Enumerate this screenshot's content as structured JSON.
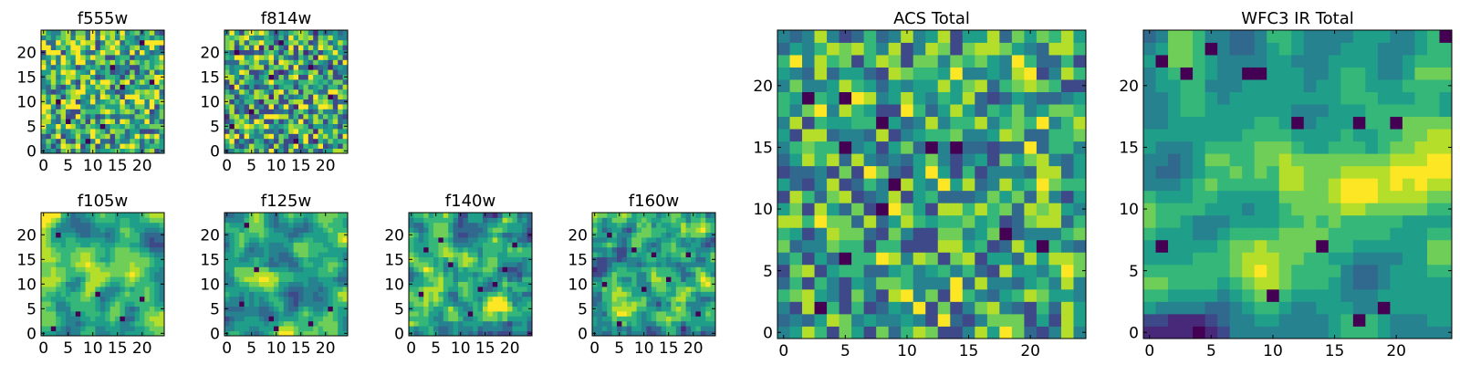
{
  "figure": {
    "colormap": [
      "#440154",
      "#482878",
      "#3e4989",
      "#31688e",
      "#26828e",
      "#1f9e89",
      "#35b779",
      "#6ece58",
      "#b5de2b",
      "#fde725"
    ]
  },
  "chart_data": [
    {
      "type": "heatmap",
      "title": "f555w",
      "grid_size": 25,
      "xlim": [
        -0.5,
        24.5
      ],
      "ylim": [
        -0.5,
        24.5
      ],
      "xticks": [
        0,
        5,
        10,
        15,
        20
      ],
      "yticks": [
        0,
        5,
        10,
        15,
        20
      ],
      "xtick_labels": [
        "0",
        "5",
        "10",
        "15",
        "20"
      ],
      "ytick_labels": [
        "0",
        "5",
        "10",
        "15",
        "20"
      ],
      "seed": 11,
      "smooth": 0,
      "base": 0.62,
      "noise": 0.38,
      "dark_spots": [
        [
          16,
          13
        ],
        [
          12,
          5
        ],
        [
          5,
          6
        ],
        [
          9,
          2
        ],
        [
          20,
          22
        ],
        [
          14,
          17
        ],
        [
          22,
          14
        ],
        [
          3,
          10
        ]
      ]
    },
    {
      "type": "heatmap",
      "title": "f814w",
      "grid_size": 25,
      "xlim": [
        -0.5,
        24.5
      ],
      "ylim": [
        -0.5,
        24.5
      ],
      "xticks": [
        0,
        5,
        10,
        15,
        20
      ],
      "yticks": [
        0,
        5,
        10,
        15,
        20
      ],
      "xtick_labels": [
        "0",
        "5",
        "10",
        "15",
        "20"
      ],
      "ytick_labels": [
        "0",
        "5",
        "10",
        "15",
        "20"
      ],
      "seed": 23,
      "smooth": 0,
      "base": 0.58,
      "noise": 0.4,
      "dark_spots": [
        [
          2,
          20
        ],
        [
          9,
          15
        ],
        [
          14,
          2
        ],
        [
          17,
          17
        ],
        [
          5,
          8
        ],
        [
          21,
          11
        ],
        [
          11,
          22
        ],
        [
          1,
          5
        ]
      ]
    },
    {
      "type": "heatmap",
      "title": "f105w",
      "grid_size": 25,
      "xlim": [
        -0.5,
        24.5
      ],
      "ylim": [
        -0.5,
        24.5
      ],
      "xticks": [
        0,
        5,
        10,
        15,
        20
      ],
      "yticks": [
        0,
        5,
        10,
        15,
        20
      ],
      "xtick_labels": [
        "0",
        "5",
        "10",
        "15",
        "20"
      ],
      "ytick_labels": [
        "0",
        "5",
        "10",
        "15",
        "20"
      ],
      "seed": 37,
      "smooth": 2,
      "base": 0.62,
      "noise": 0.35,
      "dark_spots": [
        [
          2,
          1
        ],
        [
          7,
          4
        ],
        [
          11,
          8
        ],
        [
          16,
          3
        ],
        [
          20,
          7
        ],
        [
          3,
          20
        ]
      ],
      "bright_band": {
        "y": 12,
        "x0": 9,
        "x1": 18
      }
    },
    {
      "type": "heatmap",
      "title": "f125w",
      "grid_size": 25,
      "xlim": [
        -0.5,
        24.5
      ],
      "ylim": [
        -0.5,
        24.5
      ],
      "xticks": [
        0,
        5,
        10,
        15,
        20
      ],
      "yticks": [
        0,
        5,
        10,
        15,
        20
      ],
      "xtick_labels": [
        "0",
        "5",
        "10",
        "15",
        "20"
      ],
      "ytick_labels": [
        "0",
        "5",
        "10",
        "15",
        "20"
      ],
      "seed": 41,
      "smooth": 2,
      "base": 0.6,
      "noise": 0.35,
      "dark_spots": [
        [
          3,
          6
        ],
        [
          9,
          3
        ],
        [
          10,
          1
        ],
        [
          17,
          2
        ],
        [
          21,
          5
        ],
        [
          4,
          22
        ],
        [
          6,
          13
        ]
      ],
      "bright_band": {
        "y": 11,
        "x0": 2,
        "x1": 10
      }
    },
    {
      "type": "heatmap",
      "title": "f140w",
      "grid_size": 25,
      "xlim": [
        -0.5,
        24.5
      ],
      "ylim": [
        -0.5,
        24.5
      ],
      "xticks": [
        0,
        5,
        10,
        15,
        20
      ],
      "yticks": [
        0,
        5,
        10,
        15,
        20
      ],
      "xtick_labels": [
        "0",
        "5",
        "10",
        "15",
        "20"
      ],
      "ytick_labels": [
        "0",
        "5",
        "10",
        "15",
        "20"
      ],
      "seed": 53,
      "smooth": 1,
      "base": 0.55,
      "noise": 0.42,
      "dark_spots": [
        [
          3,
          17
        ],
        [
          6,
          19
        ],
        [
          8,
          14
        ],
        [
          14,
          9
        ],
        [
          17,
          10
        ],
        [
          12,
          4
        ],
        [
          2,
          8
        ],
        [
          19,
          13
        ],
        [
          21,
          18
        ]
      ],
      "bright_band": {
        "y": 5,
        "x0": 16,
        "x1": 24
      }
    },
    {
      "type": "heatmap",
      "title": "f160w",
      "grid_size": 25,
      "xlim": [
        -0.5,
        24.5
      ],
      "ylim": [
        -0.5,
        24.5
      ],
      "xticks": [
        0,
        5,
        10,
        15,
        20
      ],
      "yticks": [
        0,
        5,
        10,
        15,
        20
      ],
      "xtick_labels": [
        "0",
        "5",
        "10",
        "15",
        "20"
      ],
      "ytick_labels": [
        "0",
        "5",
        "10",
        "15",
        "20"
      ],
      "seed": 67,
      "smooth": 1,
      "base": 0.56,
      "noise": 0.4,
      "dark_spots": [
        [
          3,
          20
        ],
        [
          8,
          17
        ],
        [
          12,
          16
        ],
        [
          15,
          11
        ],
        [
          19,
          16
        ],
        [
          10,
          9
        ],
        [
          5,
          2
        ],
        [
          21,
          4
        ],
        [
          2,
          10
        ]
      ],
      "bright_band": {
        "y": 10,
        "x0": 22,
        "x1": 24
      }
    },
    {
      "type": "heatmap",
      "title": "ACS Total",
      "grid_size": 25,
      "xlim": [
        -0.5,
        24.5
      ],
      "ylim": [
        -0.5,
        24.5
      ],
      "xticks": [
        0,
        5,
        10,
        15,
        20
      ],
      "yticks": [
        0,
        5,
        10,
        15,
        20
      ],
      "xtick_labels": [
        "0",
        "5",
        "10",
        "15",
        "20"
      ],
      "ytick_labels": [
        "0",
        "5",
        "10",
        "15",
        "20"
      ],
      "seed": 79,
      "smooth": 0,
      "base": 0.58,
      "noise": 0.36,
      "dark_spots": [
        [
          2,
          19
        ],
        [
          5,
          19
        ],
        [
          8,
          17
        ],
        [
          5,
          15
        ],
        [
          12,
          15
        ],
        [
          14,
          15
        ],
        [
          8,
          10
        ],
        [
          9,
          12
        ],
        [
          3,
          2
        ],
        [
          21,
          7
        ],
        [
          18,
          8
        ],
        [
          5,
          6
        ]
      ]
    },
    {
      "type": "heatmap",
      "title": "WFC3 IR Total",
      "grid_size": 25,
      "xlim": [
        -0.5,
        24.5
      ],
      "ylim": [
        -0.5,
        24.5
      ],
      "xticks": [
        0,
        5,
        10,
        15,
        20
      ],
      "yticks": [
        0,
        5,
        10,
        15,
        20
      ],
      "xtick_labels": [
        "0",
        "5",
        "10",
        "15",
        "20"
      ],
      "ytick_labels": [
        "0",
        "5",
        "10",
        "15",
        "20"
      ],
      "seed": 97,
      "smooth": 2,
      "base": 0.5,
      "noise": 0.4,
      "dark_spots": [
        [
          1,
          22
        ],
        [
          3,
          21
        ],
        [
          8,
          21
        ],
        [
          9,
          21
        ],
        [
          5,
          23
        ],
        [
          17,
          17
        ],
        [
          20,
          17
        ],
        [
          12,
          17
        ],
        [
          1,
          7
        ],
        [
          14,
          7
        ],
        [
          10,
          3
        ],
        [
          19,
          2
        ],
        [
          17,
          1
        ],
        [
          24,
          24
        ]
      ],
      "bright_band": {
        "y": 12,
        "x0": 11,
        "x1": 24
      }
    }
  ]
}
